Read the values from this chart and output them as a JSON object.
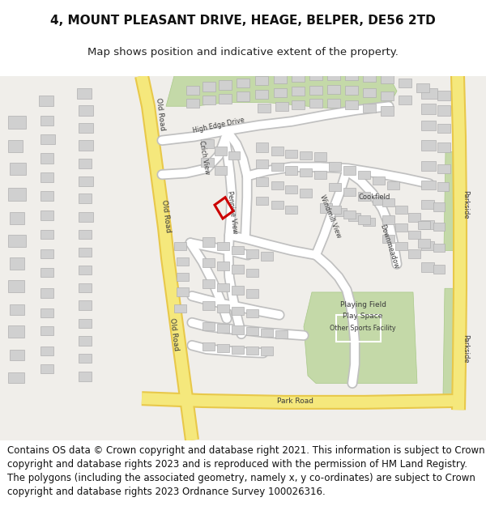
{
  "title_line1": "4, MOUNT PLEASANT DRIVE, HEAGE, BELPER, DE56 2TD",
  "title_line2": "Map shows position and indicative extent of the property.",
  "footer_text": "Contains OS data © Crown copyright and database right 2021. This information is subject to Crown copyright and database rights 2023 and is reproduced with the permission of HM Land Registry. The polygons (including the associated geometry, namely x, y co-ordinates) are subject to Crown copyright and database rights 2023 Ordnance Survey 100026316.",
  "bg_color": "#ffffff",
  "map_bg": "#f0eeea",
  "road_yellow": "#f5e87c",
  "road_yellow_border": "#e8c84a",
  "building_fill": "#d0d0d0",
  "building_border": "#b0b0b0",
  "green_fill": "#c4d9a8",
  "green_border": "#a8c888",
  "highlight_color": "#cc0000",
  "title_fontsize": 11,
  "footer_fontsize": 8.5
}
